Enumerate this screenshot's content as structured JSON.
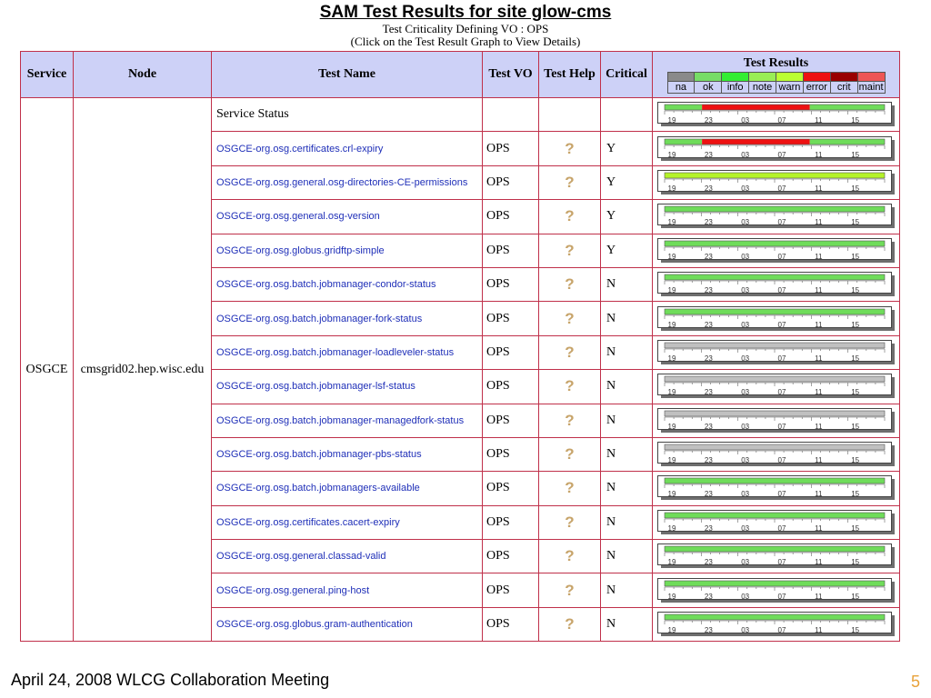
{
  "header": {
    "title": "SAM Test Results for site glow-cms",
    "subtitle1": "Test Criticality Defining VO : OPS",
    "subtitle2": "(Click on the Test Result Graph to View Details)"
  },
  "table": {
    "columns": [
      "Service",
      "Node",
      "Test Name",
      "Test VO",
      "Test Help",
      "Critical",
      "Test Results"
    ],
    "service": "OSGCE",
    "node": "cmsgrid02.hep.wisc.edu",
    "legend": [
      {
        "label": "na",
        "color": "#8a8a8a"
      },
      {
        "label": "ok",
        "color": "#77dd66"
      },
      {
        "label": "info",
        "color": "#33ee33"
      },
      {
        "label": "note",
        "color": "#99ee55"
      },
      {
        "label": "warn",
        "color": "#bbff33"
      },
      {
        "label": "error",
        "color": "#ee1111"
      },
      {
        "label": "crit",
        "color": "#990000"
      },
      {
        "label": "maint",
        "color": "#ee5555"
      }
    ],
    "tick_labels": [
      "19",
      "23",
      "03",
      "07",
      "11",
      "15"
    ],
    "status_colors": {
      "ok": "#6fdc5a",
      "error": "#ee1111",
      "na": "#c0c0c0",
      "warn": "#b4f22a"
    },
    "rows": [
      {
        "name": "Service Status",
        "vo": "",
        "help": "",
        "critical": "",
        "link": false,
        "segments": [
          {
            "status": "ok",
            "from": 0,
            "to": 0.17
          },
          {
            "status": "error",
            "from": 0.17,
            "to": 0.66
          },
          {
            "status": "ok",
            "from": 0.66,
            "to": 1
          }
        ]
      },
      {
        "name": "OSGCE-org.osg.certificates.crl-expiry",
        "vo": "OPS",
        "help": "?",
        "critical": "Y",
        "link": true,
        "segments": [
          {
            "status": "ok",
            "from": 0,
            "to": 0.17
          },
          {
            "status": "error",
            "from": 0.17,
            "to": 0.66
          },
          {
            "status": "ok",
            "from": 0.66,
            "to": 1
          }
        ]
      },
      {
        "name": "OSGCE-org.osg.general.osg-directories-CE-permissions",
        "vo": "OPS",
        "help": "?",
        "critical": "Y",
        "link": true,
        "segments": [
          {
            "status": "warn",
            "from": 0,
            "to": 1
          }
        ]
      },
      {
        "name": "OSGCE-org.osg.general.osg-version",
        "vo": "OPS",
        "help": "?",
        "critical": "Y",
        "link": true,
        "segments": [
          {
            "status": "ok",
            "from": 0,
            "to": 1
          }
        ]
      },
      {
        "name": "OSGCE-org.osg.globus.gridftp-simple",
        "vo": "OPS",
        "help": "?",
        "critical": "Y",
        "link": true,
        "segments": [
          {
            "status": "ok",
            "from": 0,
            "to": 1
          }
        ]
      },
      {
        "name": "OSGCE-org.osg.batch.jobmanager-condor-status",
        "vo": "OPS",
        "help": "?",
        "critical": "N",
        "link": true,
        "segments": [
          {
            "status": "ok",
            "from": 0,
            "to": 1
          }
        ]
      },
      {
        "name": "OSGCE-org.osg.batch.jobmanager-fork-status",
        "vo": "OPS",
        "help": "?",
        "critical": "N",
        "link": true,
        "segments": [
          {
            "status": "ok",
            "from": 0,
            "to": 1
          }
        ]
      },
      {
        "name": "OSGCE-org.osg.batch.jobmanager-loadleveler-status",
        "vo": "OPS",
        "help": "?",
        "critical": "N",
        "link": true,
        "segments": [
          {
            "status": "na",
            "from": 0,
            "to": 1
          }
        ]
      },
      {
        "name": "OSGCE-org.osg.batch.jobmanager-lsf-status",
        "vo": "OPS",
        "help": "?",
        "critical": "N",
        "link": true,
        "segments": [
          {
            "status": "na",
            "from": 0,
            "to": 1
          }
        ]
      },
      {
        "name": "OSGCE-org.osg.batch.jobmanager-managedfork-status",
        "vo": "OPS",
        "help": "?",
        "critical": "N",
        "link": true,
        "segments": [
          {
            "status": "na",
            "from": 0,
            "to": 1
          }
        ]
      },
      {
        "name": "OSGCE-org.osg.batch.jobmanager-pbs-status",
        "vo": "OPS",
        "help": "?",
        "critical": "N",
        "link": true,
        "segments": [
          {
            "status": "na",
            "from": 0,
            "to": 1
          }
        ]
      },
      {
        "name": "OSGCE-org.osg.batch.jobmanagers-available",
        "vo": "OPS",
        "help": "?",
        "critical": "N",
        "link": true,
        "segments": [
          {
            "status": "ok",
            "from": 0,
            "to": 1
          }
        ]
      },
      {
        "name": "OSGCE-org.osg.certificates.cacert-expiry",
        "vo": "OPS",
        "help": "?",
        "critical": "N",
        "link": true,
        "segments": [
          {
            "status": "ok",
            "from": 0,
            "to": 1
          }
        ]
      },
      {
        "name": "OSGCE-org.osg.general.classad-valid",
        "vo": "OPS",
        "help": "?",
        "critical": "N",
        "link": true,
        "segments": [
          {
            "status": "ok",
            "from": 0,
            "to": 1
          }
        ]
      },
      {
        "name": "OSGCE-org.osg.general.ping-host",
        "vo": "OPS",
        "help": "?",
        "critical": "N",
        "link": true,
        "segments": [
          {
            "status": "ok",
            "from": 0,
            "to": 1
          }
        ]
      },
      {
        "name": "OSGCE-org.osg.globus.gram-authentication",
        "vo": "OPS",
        "help": "?",
        "critical": "N",
        "link": true,
        "segments": [
          {
            "status": "ok",
            "from": 0,
            "to": 1
          }
        ]
      }
    ]
  },
  "footer": {
    "text": "April 24, 2008 WLCG Collaboration Meeting",
    "page": "5"
  }
}
